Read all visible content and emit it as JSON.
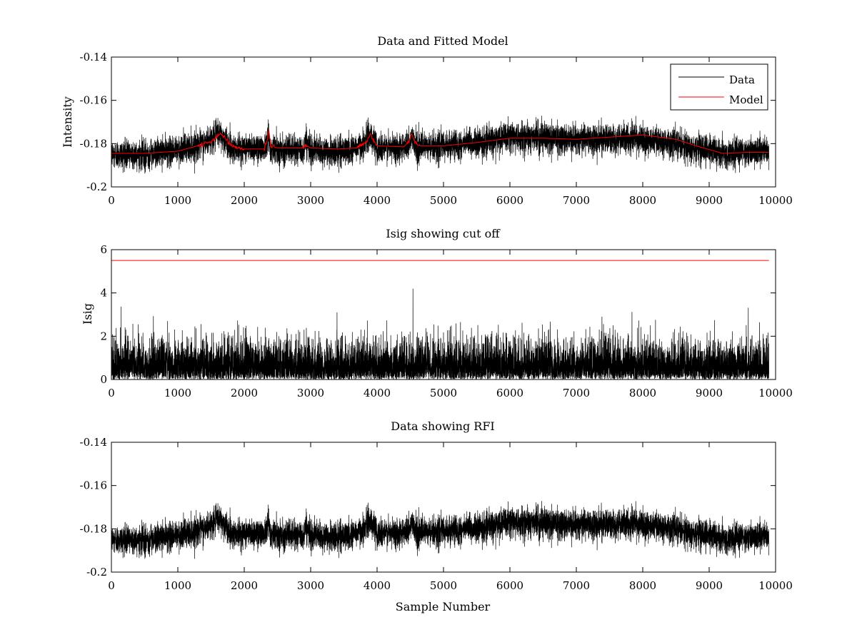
{
  "chart_data": [
    {
      "type": "line",
      "title": "Data and Fitted Model",
      "xlabel": "",
      "ylabel": "Intensity",
      "xlim": [
        0,
        10000
      ],
      "ylim": [
        -0.2,
        -0.14
      ],
      "xticks": [
        0,
        1000,
        2000,
        3000,
        4000,
        5000,
        6000,
        7000,
        8000,
        9000,
        10000
      ],
      "yticks": [
        -0.2,
        -0.18,
        -0.16,
        -0.14
      ],
      "xtick_labels": [
        "0",
        "1000",
        "2000",
        "3000",
        "4000",
        "5000",
        "6000",
        "7000",
        "8000",
        "9000",
        "10000"
      ],
      "ytick_labels": [
        "-0.2",
        "-0.18",
        "-0.16",
        "-0.14"
      ],
      "legend": {
        "placement": "top-right",
        "entries": [
          "Data",
          "Model"
        ]
      },
      "n_samples": 9900,
      "series": [
        {
          "name": "Data",
          "color": "#000000",
          "envelope_x": [
            0,
            500,
            1000,
            1400,
            1550,
            1620,
            1700,
            1800,
            2000,
            2300,
            2360,
            2400,
            2600,
            2900,
            2920,
            3000,
            3300,
            3600,
            3800,
            3900,
            3950,
            4000,
            4300,
            4500,
            4520,
            4600,
            5000,
            5500,
            6000,
            6500,
            7000,
            7500,
            8000,
            8500,
            9000,
            9200,
            9500,
            9900
          ],
          "envelope_y": [
            -0.185,
            -0.185,
            -0.183,
            -0.18,
            -0.177,
            -0.175,
            -0.178,
            -0.182,
            -0.182,
            -0.182,
            -0.176,
            -0.182,
            -0.183,
            -0.183,
            -0.178,
            -0.183,
            -0.184,
            -0.183,
            -0.18,
            -0.176,
            -0.179,
            -0.182,
            -0.182,
            -0.18,
            -0.176,
            -0.182,
            -0.181,
            -0.18,
            -0.177,
            -0.177,
            -0.178,
            -0.178,
            -0.178,
            -0.18,
            -0.183,
            -0.185,
            -0.184,
            -0.183
          ],
          "noise_amplitude": 0.006,
          "range": [
            -0.194,
            -0.165
          ]
        },
        {
          "name": "Model",
          "color": "#ff0000",
          "x": [
            0,
            500,
            1000,
            1300,
            1500,
            1580,
            1640,
            1700,
            1800,
            2000,
            2300,
            2350,
            2370,
            2400,
            2500,
            2900,
            2920,
            3000,
            3400,
            3700,
            3850,
            3900,
            3940,
            4000,
            4400,
            4480,
            4520,
            4560,
            4650,
            5000,
            5500,
            6000,
            6500,
            7000,
            7500,
            8000,
            8500,
            8800,
            9200,
            9600,
            9900
          ],
          "y": [
            -0.1845,
            -0.1845,
            -0.1835,
            -0.181,
            -0.179,
            -0.177,
            -0.175,
            -0.177,
            -0.181,
            -0.1825,
            -0.1825,
            -0.178,
            -0.174,
            -0.181,
            -0.182,
            -0.182,
            -0.1805,
            -0.182,
            -0.1825,
            -0.182,
            -0.179,
            -0.1755,
            -0.178,
            -0.181,
            -0.1815,
            -0.179,
            -0.175,
            -0.179,
            -0.181,
            -0.181,
            -0.1795,
            -0.1775,
            -0.1775,
            -0.178,
            -0.177,
            -0.176,
            -0.178,
            -0.181,
            -0.1845,
            -0.184,
            -0.184
          ]
        }
      ]
    },
    {
      "type": "line",
      "title": "Isig showing cut off",
      "xlabel": "",
      "ylabel": "Isig",
      "xlim": [
        0,
        10000
      ],
      "ylim": [
        0,
        6
      ],
      "xticks": [
        0,
        1000,
        2000,
        3000,
        4000,
        5000,
        6000,
        7000,
        8000,
        9000,
        10000
      ],
      "yticks": [
        0,
        2,
        4,
        6
      ],
      "xtick_labels": [
        "0",
        "1000",
        "2000",
        "3000",
        "4000",
        "5000",
        "6000",
        "7000",
        "8000",
        "9000",
        "10000"
      ],
      "ytick_labels": [
        "0",
        "2",
        "4",
        "6"
      ],
      "n_samples": 9900,
      "series": [
        {
          "name": "Isig",
          "color": "#000000",
          "range": [
            0,
            4.2
          ],
          "peak": {
            "x": 4540,
            "y": 4.2
          }
        },
        {
          "name": "Cut off",
          "color": "#ff0000",
          "constant": 5.5
        }
      ]
    },
    {
      "type": "line",
      "title": "Data showing RFI",
      "xlabel": "Sample Number",
      "ylabel": "",
      "xlim": [
        0,
        10000
      ],
      "ylim": [
        -0.2,
        -0.14
      ],
      "xticks": [
        0,
        1000,
        2000,
        3000,
        4000,
        5000,
        6000,
        7000,
        8000,
        9000,
        10000
      ],
      "yticks": [
        -0.2,
        -0.18,
        -0.16,
        -0.14
      ],
      "xtick_labels": [
        "0",
        "1000",
        "2000",
        "3000",
        "4000",
        "5000",
        "6000",
        "7000",
        "8000",
        "9000",
        "10000"
      ],
      "ytick_labels": [
        "-0.2",
        "-0.18",
        "-0.16",
        "-0.14"
      ],
      "n_samples": 9900,
      "series": [
        {
          "name": "Data",
          "color": "#000000",
          "same_as": "panel1.Data",
          "range": [
            -0.194,
            -0.165
          ]
        }
      ]
    }
  ]
}
